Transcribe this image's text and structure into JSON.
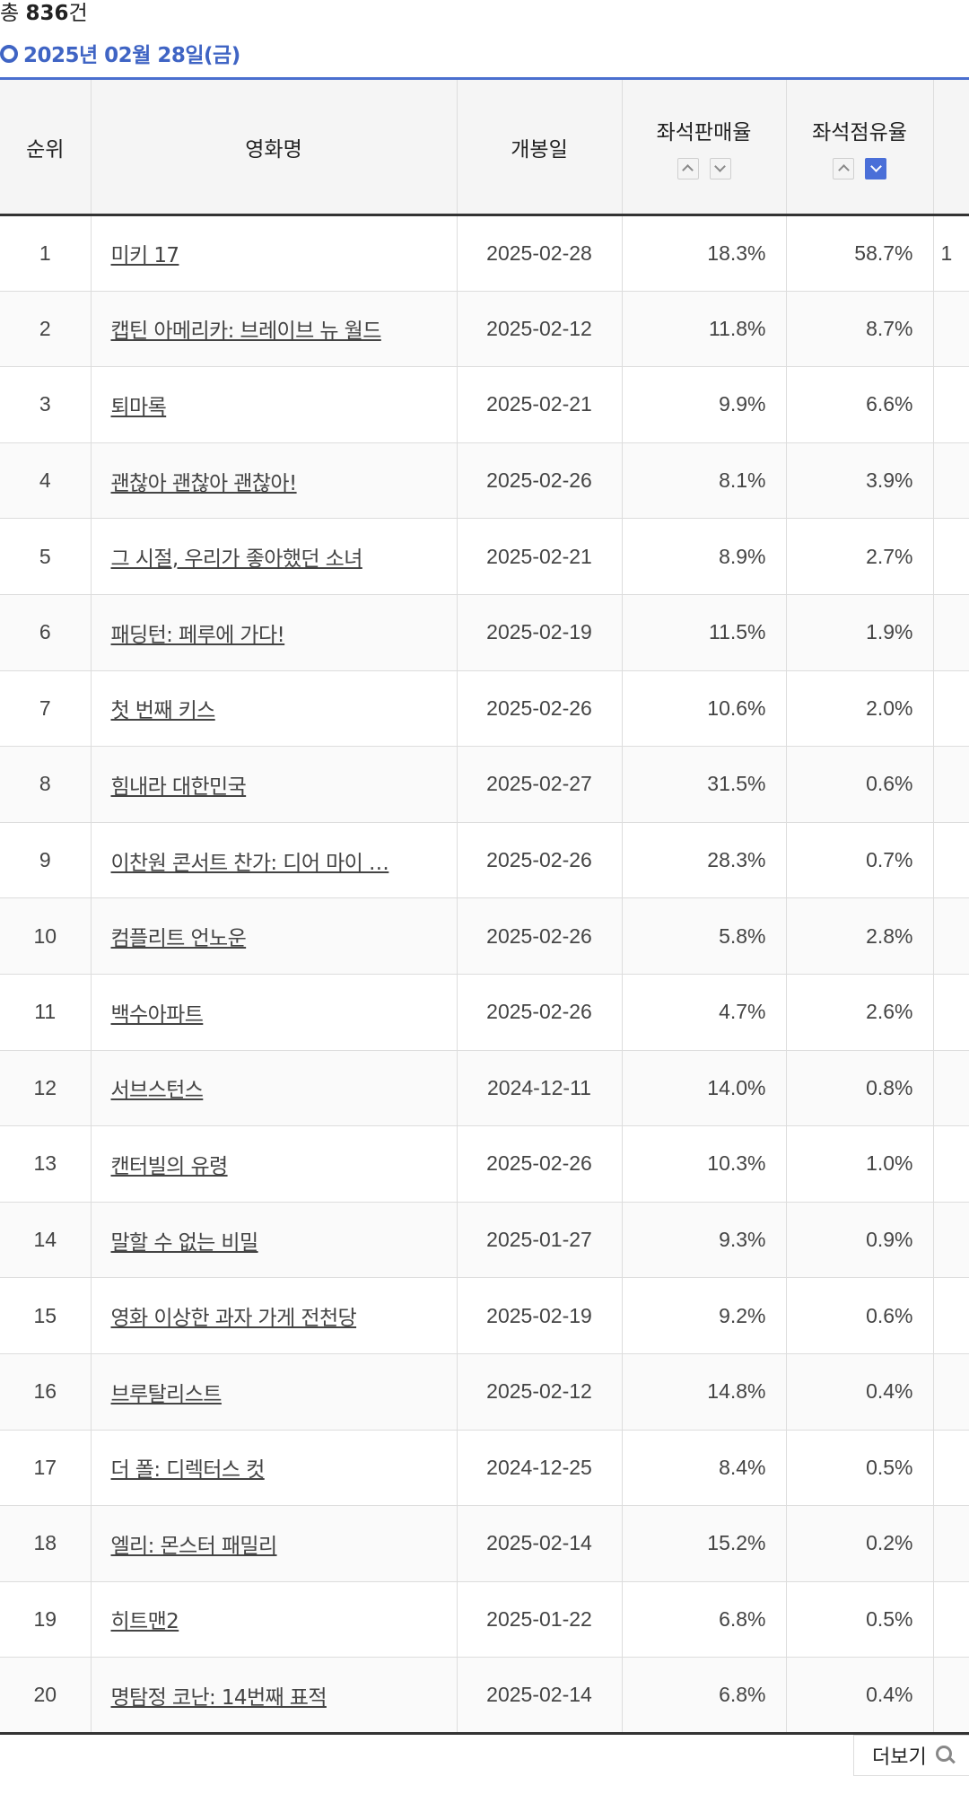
{
  "summary": {
    "total_prefix": "총",
    "total_count": "836",
    "total_suffix": "건"
  },
  "date_heading": "2025년 02월 28일(금)",
  "table": {
    "headers": {
      "rank": "순위",
      "title": "영화명",
      "open_date": "개봉일",
      "seat_sales_rate": "좌석판매율",
      "seat_share_rate": "좌석점유율"
    },
    "sort": {
      "seat_sales_rate": "none",
      "seat_share_rate": "desc"
    },
    "rows": [
      {
        "rank": "1",
        "title": "미키 17",
        "open_date": "2025-02-28",
        "sales": "18.3%",
        "share": "58.7%",
        "extra": "1"
      },
      {
        "rank": "2",
        "title": "캡틴 아메리카: 브레이브 뉴 월드",
        "open_date": "2025-02-12",
        "sales": "11.8%",
        "share": "8.7%",
        "extra": ""
      },
      {
        "rank": "3",
        "title": "퇴마록",
        "open_date": "2025-02-21",
        "sales": "9.9%",
        "share": "6.6%",
        "extra": ""
      },
      {
        "rank": "4",
        "title": "괜찮아 괜찮아 괜찮아!",
        "open_date": "2025-02-26",
        "sales": "8.1%",
        "share": "3.9%",
        "extra": ""
      },
      {
        "rank": "5",
        "title": "그 시절, 우리가 좋아했던 소녀",
        "open_date": "2025-02-21",
        "sales": "8.9%",
        "share": "2.7%",
        "extra": ""
      },
      {
        "rank": "6",
        "title": "패딩턴: 페루에 가다!",
        "open_date": "2025-02-19",
        "sales": "11.5%",
        "share": "1.9%",
        "extra": ""
      },
      {
        "rank": "7",
        "title": "첫 번째 키스",
        "open_date": "2025-02-26",
        "sales": "10.6%",
        "share": "2.0%",
        "extra": ""
      },
      {
        "rank": "8",
        "title": "힘내라 대한민국",
        "open_date": "2025-02-27",
        "sales": "31.5%",
        "share": "0.6%",
        "extra": ""
      },
      {
        "rank": "9",
        "title": "이찬원 콘서트 찬가: 디어 마이 …",
        "open_date": "2025-02-26",
        "sales": "28.3%",
        "share": "0.7%",
        "extra": ""
      },
      {
        "rank": "10",
        "title": "컴플리트 언노운",
        "open_date": "2025-02-26",
        "sales": "5.8%",
        "share": "2.8%",
        "extra": ""
      },
      {
        "rank": "11",
        "title": "백수아파트",
        "open_date": "2025-02-26",
        "sales": "4.7%",
        "share": "2.6%",
        "extra": ""
      },
      {
        "rank": "12",
        "title": "서브스턴스",
        "open_date": "2024-12-11",
        "sales": "14.0%",
        "share": "0.8%",
        "extra": ""
      },
      {
        "rank": "13",
        "title": "캔터빌의 유령",
        "open_date": "2025-02-26",
        "sales": "10.3%",
        "share": "1.0%",
        "extra": ""
      },
      {
        "rank": "14",
        "title": "말할 수 없는 비밀",
        "open_date": "2025-01-27",
        "sales": "9.3%",
        "share": "0.9%",
        "extra": ""
      },
      {
        "rank": "15",
        "title": "영화 이상한 과자 가게 전천당",
        "open_date": "2025-02-19",
        "sales": "9.2%",
        "share": "0.6%",
        "extra": ""
      },
      {
        "rank": "16",
        "title": "브루탈리스트",
        "open_date": "2025-02-12",
        "sales": "14.8%",
        "share": "0.4%",
        "extra": ""
      },
      {
        "rank": "17",
        "title": "더 폴: 디렉터스 컷",
        "open_date": "2024-12-25",
        "sales": "8.4%",
        "share": "0.5%",
        "extra": ""
      },
      {
        "rank": "18",
        "title": "엘리: 몬스터 패밀리",
        "open_date": "2025-02-14",
        "sales": "15.2%",
        "share": "0.2%",
        "extra": ""
      },
      {
        "rank": "19",
        "title": "히트맨2",
        "open_date": "2025-01-22",
        "sales": "6.8%",
        "share": "0.5%",
        "extra": ""
      },
      {
        "rank": "20",
        "title": "명탐정 코난: 14번째 표적",
        "open_date": "2025-02-14",
        "sales": "6.8%",
        "share": "0.4%",
        "extra": ""
      }
    ]
  },
  "more_button": {
    "label": "더보기",
    "icon": "search-icon"
  }
}
